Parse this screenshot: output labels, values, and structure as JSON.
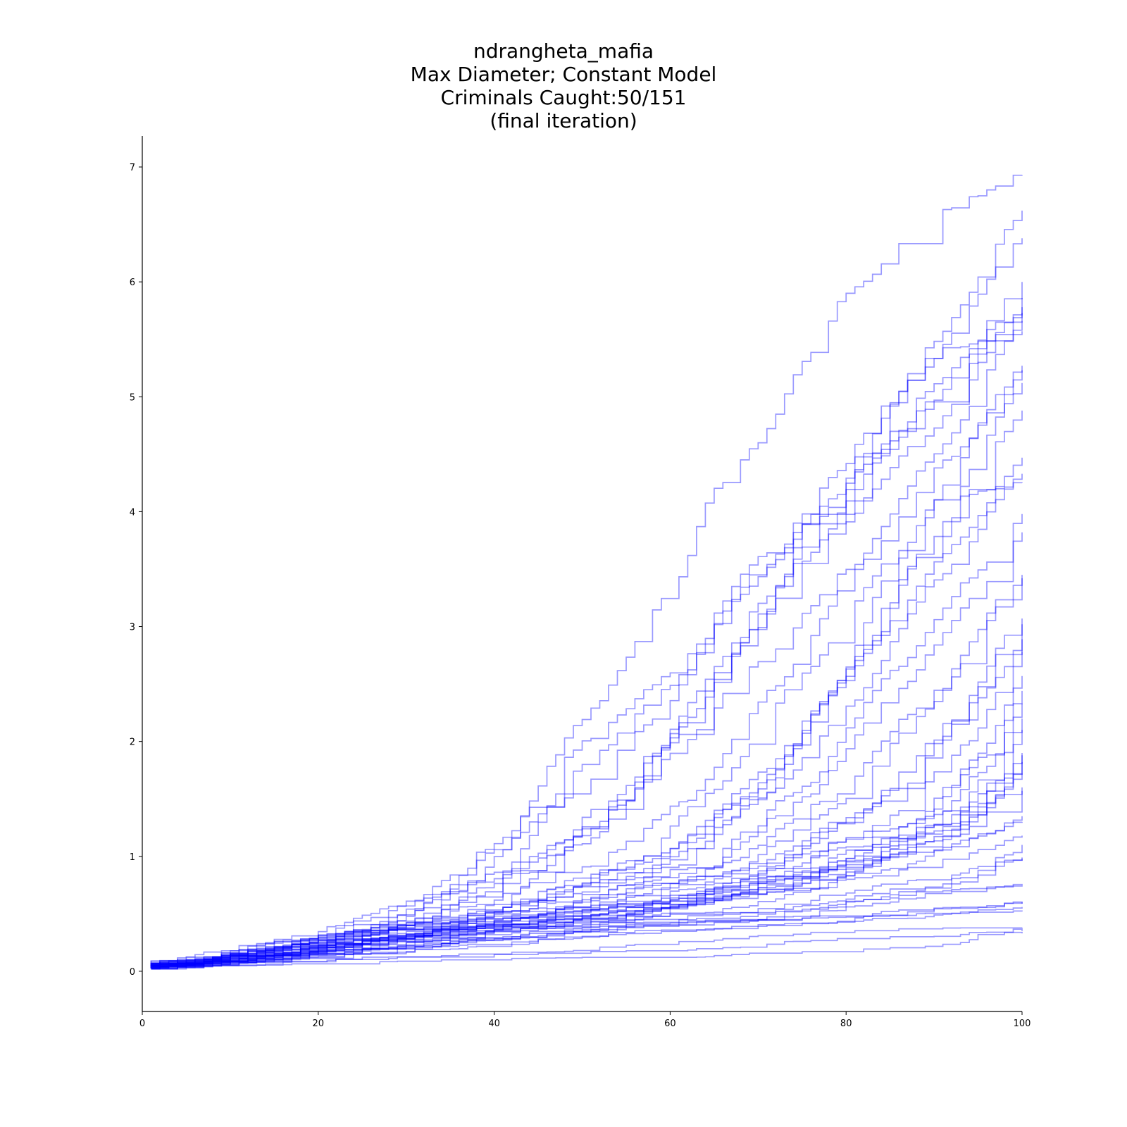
{
  "chart_data": {
    "type": "line",
    "title_lines": [
      "ndrangheta_mafia",
      "Max Diameter; Constant Model",
      "Criminals Caught:50/151",
      "(final iteration)"
    ],
    "xlabel": "",
    "ylabel": "",
    "xlim": [
      0,
      100
    ],
    "ylim": [
      -0.35,
      7.27
    ],
    "x_ticks": [
      0,
      20,
      40,
      60,
      80,
      100
    ],
    "y_ticks": [
      0,
      1,
      2,
      3,
      4,
      5,
      6,
      7
    ],
    "grid": false,
    "legend": "none",
    "line_color": "#0000ff",
    "line_alpha": 0.4,
    "series_count": 50,
    "series_final_values": [
      6.93,
      6.62,
      6.38,
      6.0,
      5.86,
      5.78,
      5.73,
      5.66,
      5.57,
      5.27,
      5.23,
      5.12,
      4.88,
      4.47,
      4.33,
      4.25,
      3.98,
      3.82,
      3.45,
      3.42,
      3.07,
      3.02,
      2.89,
      2.78,
      2.57,
      2.44,
      2.33,
      2.2,
      2.1,
      1.9,
      1.88,
      1.82,
      1.72,
      1.6,
      1.57,
      1.35,
      1.3,
      1.18,
      1.1,
      0.99,
      0.98,
      0.76,
      0.75,
      0.6,
      0.59,
      0.56,
      0.52,
      0.38,
      0.35,
      0.33
    ],
    "series_knots": [
      [
        [
          1,
          0.05
        ],
        [
          10,
          0.2
        ],
        [
          30,
          0.5
        ],
        [
          40,
          1.05
        ],
        [
          50,
          2.2
        ],
        [
          60,
          3.3
        ],
        [
          65,
          4.2
        ],
        [
          70,
          4.6
        ],
        [
          75,
          5.3
        ],
        [
          80,
          5.9
        ],
        [
          90,
          6.6
        ],
        [
          100,
          6.93
        ]
      ],
      [
        [
          1,
          0.03
        ],
        [
          15,
          0.2
        ],
        [
          30,
          0.6
        ],
        [
          40,
          1.1
        ],
        [
          50,
          2.0
        ],
        [
          60,
          2.6
        ],
        [
          70,
          3.6
        ],
        [
          80,
          4.4
        ],
        [
          90,
          5.5
        ],
        [
          100,
          6.62
        ]
      ],
      [
        [
          1,
          0.04
        ],
        [
          20,
          0.3
        ],
        [
          35,
          0.7
        ],
        [
          48,
          1.5
        ],
        [
          58,
          2.2
        ],
        [
          68,
          3.3
        ],
        [
          78,
          4.1
        ],
        [
          88,
          5.2
        ],
        [
          100,
          6.38
        ]
      ],
      [
        [
          1,
          0.06
        ],
        [
          20,
          0.25
        ],
        [
          40,
          0.8
        ],
        [
          50,
          1.8
        ],
        [
          60,
          2.5
        ],
        [
          70,
          3.5
        ],
        [
          80,
          4.3
        ],
        [
          90,
          5.1
        ],
        [
          100,
          6.0
        ]
      ],
      [
        [
          1,
          0.02
        ],
        [
          25,
          0.3
        ],
        [
          45,
          0.9
        ],
        [
          55,
          1.6
        ],
        [
          65,
          2.6
        ],
        [
          75,
          3.6
        ],
        [
          85,
          4.6
        ],
        [
          100,
          5.86
        ]
      ],
      [
        [
          1,
          0.05
        ],
        [
          20,
          0.3
        ],
        [
          40,
          0.6
        ],
        [
          55,
          1.5
        ],
        [
          62,
          2.2
        ],
        [
          70,
          3.2
        ],
        [
          80,
          4.2
        ],
        [
          90,
          5.0
        ],
        [
          100,
          5.78
        ]
      ],
      [
        [
          1,
          0.08
        ],
        [
          25,
          0.35
        ],
        [
          45,
          1.0
        ],
        [
          58,
          1.9
        ],
        [
          68,
          2.9
        ],
        [
          78,
          3.8
        ],
        [
          88,
          4.6
        ],
        [
          100,
          5.73
        ]
      ],
      [
        [
          1,
          0.03
        ],
        [
          30,
          0.4
        ],
        [
          50,
          1.1
        ],
        [
          60,
          1.9
        ],
        [
          70,
          2.7
        ],
        [
          80,
          3.5
        ],
        [
          90,
          4.5
        ],
        [
          100,
          5.66
        ]
      ],
      [
        [
          1,
          0.04
        ],
        [
          30,
          0.4
        ],
        [
          50,
          1.2
        ],
        [
          60,
          2.0
        ],
        [
          70,
          3.0
        ],
        [
          75,
          3.9
        ],
        [
          80,
          4.5
        ],
        [
          85,
          5.0
        ],
        [
          90,
          5.4
        ],
        [
          100,
          5.57
        ]
      ],
      [
        [
          1,
          0.05
        ],
        [
          30,
          0.35
        ],
        [
          50,
          0.9
        ],
        [
          62,
          1.5
        ],
        [
          72,
          2.5
        ],
        [
          82,
          3.6
        ],
        [
          92,
          4.5
        ],
        [
          100,
          5.27
        ]
      ],
      [
        [
          1,
          0.02
        ],
        [
          30,
          0.3
        ],
        [
          55,
          0.9
        ],
        [
          65,
          1.6
        ],
        [
          75,
          2.6
        ],
        [
          85,
          3.6
        ],
        [
          100,
          5.23
        ]
      ],
      [
        [
          1,
          0.06
        ],
        [
          30,
          0.4
        ],
        [
          55,
          0.8
        ],
        [
          68,
          1.5
        ],
        [
          78,
          2.4
        ],
        [
          88,
          3.6
        ],
        [
          100,
          5.12
        ]
      ],
      [
        [
          1,
          0.04
        ],
        [
          35,
          0.4
        ],
        [
          58,
          0.9
        ],
        [
          70,
          1.6
        ],
        [
          80,
          2.6
        ],
        [
          90,
          3.8
        ],
        [
          100,
          4.88
        ]
      ],
      [
        [
          1,
          0.03
        ],
        [
          35,
          0.45
        ],
        [
          58,
          1.0
        ],
        [
          72,
          1.8
        ],
        [
          82,
          2.8
        ],
        [
          92,
          3.7
        ],
        [
          100,
          4.47
        ]
      ],
      [
        [
          1,
          0.07
        ],
        [
          35,
          0.4
        ],
        [
          60,
          1.0
        ],
        [
          72,
          1.6
        ],
        [
          80,
          2.3
        ],
        [
          90,
          3.4
        ],
        [
          100,
          4.33
        ]
      ],
      [
        [
          1,
          0.05
        ],
        [
          40,
          0.5
        ],
        [
          60,
          0.9
        ],
        [
          70,
          1.5
        ],
        [
          78,
          2.4
        ],
        [
          85,
          3.5
        ],
        [
          90,
          4.1
        ],
        [
          100,
          4.25
        ]
      ],
      [
        [
          1,
          0.02
        ],
        [
          40,
          0.4
        ],
        [
          62,
          0.9
        ],
        [
          75,
          1.6
        ],
        [
          85,
          2.6
        ],
        [
          95,
          3.5
        ],
        [
          100,
          3.98
        ]
      ],
      [
        [
          1,
          0.04
        ],
        [
          40,
          0.45
        ],
        [
          62,
          0.8
        ],
        [
          75,
          1.5
        ],
        [
          85,
          2.4
        ],
        [
          95,
          3.3
        ],
        [
          100,
          3.82
        ]
      ],
      [
        [
          1,
          0.06
        ],
        [
          40,
          0.5
        ],
        [
          65,
          0.9
        ],
        [
          78,
          1.5
        ],
        [
          88,
          2.3
        ],
        [
          100,
          3.45
        ]
      ],
      [
        [
          1,
          0.03
        ],
        [
          40,
          0.35
        ],
        [
          65,
          0.8
        ],
        [
          78,
          1.4
        ],
        [
          88,
          2.2
        ],
        [
          100,
          3.42
        ]
      ],
      [
        [
          1,
          0.05
        ],
        [
          42,
          0.4
        ],
        [
          68,
          0.8
        ],
        [
          80,
          1.3
        ],
        [
          90,
          2.0
        ],
        [
          100,
          3.07
        ]
      ],
      [
        [
          1,
          0.04
        ],
        [
          42,
          0.5
        ],
        [
          68,
          0.9
        ],
        [
          82,
          1.4
        ],
        [
          92,
          2.2
        ],
        [
          100,
          3.02
        ]
      ],
      [
        [
          1,
          0.02
        ],
        [
          45,
          0.4
        ],
        [
          70,
          0.8
        ],
        [
          84,
          1.3
        ],
        [
          94,
          2.0
        ],
        [
          100,
          2.89
        ]
      ],
      [
        [
          1,
          0.07
        ],
        [
          45,
          0.5
        ],
        [
          70,
          0.9
        ],
        [
          85,
          1.5
        ],
        [
          95,
          2.4
        ],
        [
          100,
          2.78
        ]
      ],
      [
        [
          1,
          0.03
        ],
        [
          45,
          0.4
        ],
        [
          72,
          0.7
        ],
        [
          86,
          1.2
        ],
        [
          95,
          1.9
        ],
        [
          100,
          2.57
        ]
      ],
      [
        [
          1,
          0.05
        ],
        [
          48,
          0.45
        ],
        [
          72,
          0.8
        ],
        [
          88,
          1.3
        ],
        [
          96,
          1.9
        ],
        [
          100,
          2.44
        ]
      ],
      [
        [
          1,
          0.04
        ],
        [
          48,
          0.4
        ],
        [
          74,
          0.8
        ],
        [
          88,
          1.2
        ],
        [
          96,
          1.8
        ],
        [
          100,
          2.33
        ]
      ],
      [
        [
          1,
          0.06
        ],
        [
          50,
          0.45
        ],
        [
          75,
          0.7
        ],
        [
          90,
          1.2
        ],
        [
          97,
          1.8
        ],
        [
          100,
          2.2
        ]
      ],
      [
        [
          1,
          0.02
        ],
        [
          50,
          0.4
        ],
        [
          76,
          0.8
        ],
        [
          90,
          1.1
        ],
        [
          97,
          1.7
        ],
        [
          100,
          2.1
        ]
      ],
      [
        [
          1,
          0.05
        ],
        [
          52,
          0.5
        ],
        [
          78,
          0.8
        ],
        [
          92,
          1.2
        ],
        [
          98,
          1.7
        ],
        [
          100,
          1.9
        ]
      ],
      [
        [
          1,
          0.03
        ],
        [
          52,
          0.45
        ],
        [
          78,
          0.9
        ],
        [
          92,
          1.3
        ],
        [
          98,
          1.7
        ],
        [
          100,
          1.88
        ]
      ],
      [
        [
          1,
          0.04
        ],
        [
          55,
          0.5
        ],
        [
          80,
          0.9
        ],
        [
          93,
          1.2
        ],
        [
          98,
          1.6
        ],
        [
          100,
          1.82
        ]
      ],
      [
        [
          1,
          0.07
        ],
        [
          55,
          0.55
        ],
        [
          80,
          0.95
        ],
        [
          94,
          1.3
        ],
        [
          100,
          1.72
        ]
      ],
      [
        [
          1,
          0.05
        ],
        [
          58,
          0.6
        ],
        [
          82,
          1.1
        ],
        [
          95,
          1.4
        ],
        [
          100,
          1.6
        ]
      ],
      [
        [
          1,
          0.03
        ],
        [
          60,
          0.6
        ],
        [
          82,
          1.2
        ],
        [
          95,
          1.45
        ],
        [
          100,
          1.57
        ]
      ],
      [
        [
          1,
          0.04
        ],
        [
          60,
          0.55
        ],
        [
          85,
          0.9
        ],
        [
          96,
          1.2
        ],
        [
          100,
          1.35
        ]
      ],
      [
        [
          1,
          0.06
        ],
        [
          62,
          0.6
        ],
        [
          86,
          1.0
        ],
        [
          96,
          1.2
        ],
        [
          100,
          1.3
        ]
      ],
      [
        [
          1,
          0.02
        ],
        [
          62,
          0.5
        ],
        [
          88,
          0.9
        ],
        [
          97,
          1.1
        ],
        [
          100,
          1.18
        ]
      ],
      [
        [
          1,
          0.05
        ],
        [
          65,
          0.5
        ],
        [
          90,
          0.8
        ],
        [
          98,
          1.0
        ],
        [
          100,
          1.1
        ]
      ],
      [
        [
          1,
          0.03
        ],
        [
          65,
          0.45
        ],
        [
          90,
          0.75
        ],
        [
          98,
          0.95
        ],
        [
          100,
          0.99
        ]
      ],
      [
        [
          1,
          0.04
        ],
        [
          68,
          0.45
        ],
        [
          92,
          0.75
        ],
        [
          98,
          0.95
        ],
        [
          100,
          0.98
        ]
      ],
      [
        [
          1,
          0.06
        ],
        [
          70,
          0.5
        ],
        [
          92,
          0.7
        ],
        [
          100,
          0.76
        ]
      ],
      [
        [
          1,
          0.02
        ],
        [
          70,
          0.45
        ],
        [
          94,
          0.7
        ],
        [
          100,
          0.75
        ]
      ],
      [
        [
          1,
          0.05
        ],
        [
          72,
          0.45
        ],
        [
          95,
          0.55
        ],
        [
          100,
          0.6
        ]
      ],
      [
        [
          1,
          0.03
        ],
        [
          72,
          0.4
        ],
        [
          95,
          0.55
        ],
        [
          100,
          0.59
        ]
      ],
      [
        [
          1,
          0.04
        ],
        [
          75,
          0.4
        ],
        [
          96,
          0.52
        ],
        [
          100,
          0.56
        ]
      ],
      [
        [
          1,
          0.07
        ],
        [
          75,
          0.45
        ],
        [
          96,
          0.5
        ],
        [
          100,
          0.52
        ]
      ],
      [
        [
          1,
          0.02
        ],
        [
          40,
          0.15
        ],
        [
          85,
          0.35
        ],
        [
          100,
          0.38
        ]
      ],
      [
        [
          1,
          0.05
        ],
        [
          50,
          0.15
        ],
        [
          90,
          0.3
        ],
        [
          100,
          0.35
        ]
      ],
      [
        [
          1,
          0.03
        ],
        [
          60,
          0.12
        ],
        [
          90,
          0.2
        ],
        [
          95,
          0.3
        ],
        [
          100,
          0.33
        ]
      ]
    ]
  }
}
